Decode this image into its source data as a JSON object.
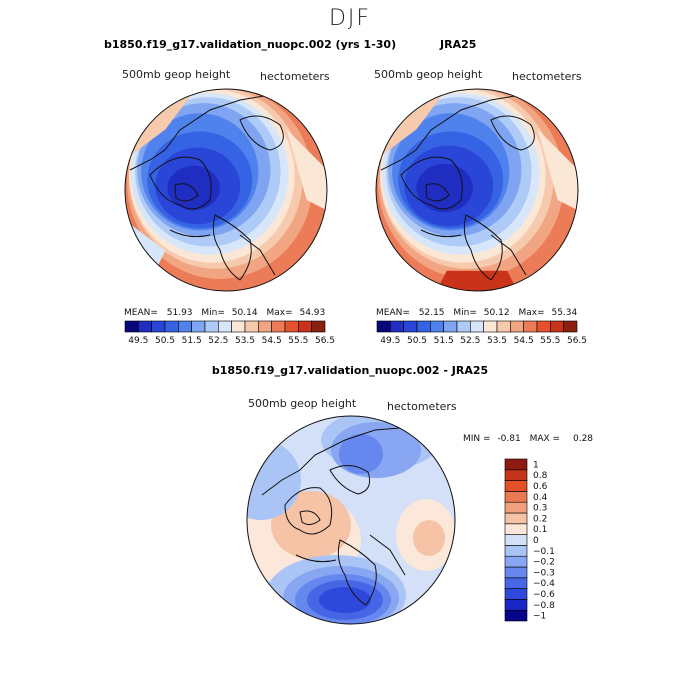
{
  "figure": {
    "title": "DJF",
    "variable_label": "500mb geop height",
    "units_label": "hectometers"
  },
  "panels": {
    "model": {
      "title": "b1850.f19_g17.validation_nuopc.002 (yrs 1-30)",
      "mean_label": "MEAN=",
      "mean_value": "51.93",
      "min_label": "Min=",
      "min_value": "50.14",
      "max_label": "Max=",
      "max_value": "54.93"
    },
    "obs": {
      "title": "JRA25",
      "mean_label": "MEAN=",
      "mean_value": "52.15",
      "min_label": "Min=",
      "min_value": "50.12",
      "max_label": "Max=",
      "max_value": "55.34"
    },
    "diff": {
      "title": "b1850.f19_g17.validation_nuopc.002 - JRA25",
      "min_label": "MIN =",
      "min_value": "-0.81",
      "max_label": "MAX =",
      "max_value": "0.28"
    }
  },
  "colors": {
    "field_levels": [
      "#08087a",
      "#1f2ec0",
      "#2a46d8",
      "#3663e3",
      "#4f82ec",
      "#7ea4f2",
      "#aecaf6",
      "#d8e6fa",
      "#fbe7d6",
      "#f7c9ad",
      "#f2a583",
      "#ec7c58",
      "#e4532e",
      "#c9331a",
      "#8a1f12"
    ],
    "diff_levels": [
      "#06068a",
      "#1a26c8",
      "#2e48dc",
      "#4666e6",
      "#6688ee",
      "#88a6f2",
      "#abc4f6",
      "#d3e0f8",
      "#fbe8da",
      "#f6c3a6",
      "#f0a07c",
      "#ea7a52",
      "#e45028",
      "#c43418",
      "#8f1a12"
    ],
    "land_outline": "#111111"
  },
  "chart_data": [
    {
      "type": "heatmap",
      "projection": "north-polar-stereographic",
      "title": "b1850.f19_g17.validation_nuopc.002 (yrs 1-30)",
      "variable": "500mb geop height",
      "units": "hectometers",
      "mean": 51.93,
      "min": 50.14,
      "max": 54.93,
      "colorbar": {
        "ticks": [
          "49.5",
          "50.5",
          "51.5",
          "52.5",
          "53.5",
          "54.5",
          "55.5",
          "56.5"
        ],
        "n_colors": 15,
        "range": [
          49.0,
          57.0
        ],
        "orientation": "horizontal"
      }
    },
    {
      "type": "heatmap",
      "projection": "north-polar-stereographic",
      "title": "JRA25",
      "variable": "500mb geop height",
      "units": "hectometers",
      "mean": 52.15,
      "min": 50.12,
      "max": 55.34,
      "colorbar": {
        "ticks": [
          "49.5",
          "50.5",
          "51.5",
          "52.5",
          "53.5",
          "54.5",
          "55.5",
          "56.5"
        ],
        "n_colors": 15,
        "range": [
          49.0,
          57.0
        ],
        "orientation": "horizontal"
      }
    },
    {
      "type": "heatmap",
      "projection": "north-polar-stereographic",
      "title": "b1850.f19_g17.validation_nuopc.002 - JRA25",
      "variable": "500mb geop height",
      "units": "hectometers",
      "min": -0.81,
      "max": 0.28,
      "colorbar": {
        "ticks": [
          "1",
          "0.8",
          "0.6",
          "0.4",
          "0.3",
          "0.2",
          "0.1",
          "0",
          "−0.1",
          "−0.2",
          "−0.3",
          "−0.4",
          "−0.6",
          "−0.8",
          "−1"
        ],
        "orientation": "vertical"
      }
    }
  ]
}
